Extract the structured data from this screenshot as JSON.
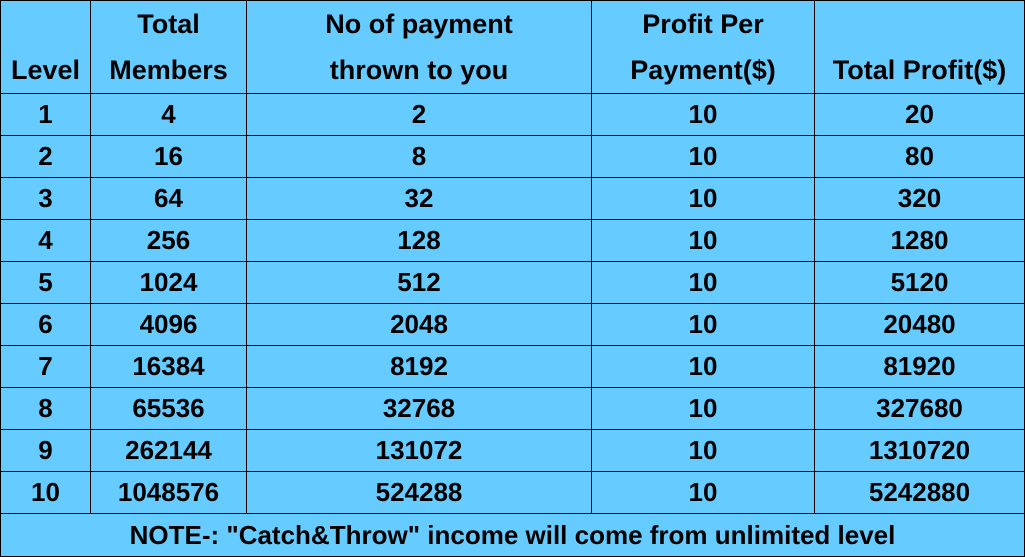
{
  "chart_data": {
    "type": "table",
    "columns": [
      {
        "lines": [
          "",
          "Level"
        ]
      },
      {
        "lines": [
          "Total",
          "Members"
        ]
      },
      {
        "lines": [
          "No of payment",
          "thrown to you"
        ]
      },
      {
        "lines": [
          "Profit Per",
          "Payment($)"
        ]
      },
      {
        "lines": [
          "",
          "Total Profit($)"
        ]
      }
    ],
    "rows": [
      [
        "1",
        "4",
        "2",
        "10",
        "20"
      ],
      [
        "2",
        "16",
        "8",
        "10",
        "80"
      ],
      [
        "3",
        "64",
        "32",
        "10",
        "320"
      ],
      [
        "4",
        "256",
        "128",
        "10",
        "1280"
      ],
      [
        "5",
        "1024",
        "512",
        "10",
        "5120"
      ],
      [
        "6",
        "4096",
        "2048",
        "10",
        "20480"
      ],
      [
        "7",
        "16384",
        "8192",
        "10",
        "81920"
      ],
      [
        "8",
        "65536",
        "32768",
        "10",
        "327680"
      ],
      [
        "9",
        "262144",
        "131072",
        "10",
        "1310720"
      ],
      [
        "10",
        "1048576",
        "524288",
        "10",
        "5242880"
      ]
    ],
    "note": "NOTE-: \"Catch&Throw\" income will come from unlimited level"
  },
  "colors": {
    "background": "#66ccff",
    "border": "#000000",
    "text": "#000000"
  }
}
